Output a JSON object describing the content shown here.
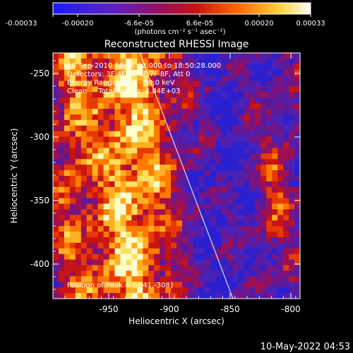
{
  "colorbar": {
    "tick_labels": [
      "-0.00033",
      "-0.00020",
      "-6.6e-05",
      "6.6e-05",
      "0.00020",
      "0.00033"
    ],
    "units_label": "(photons cm⁻² s⁻¹ asec⁻²)",
    "colors": [
      "#1a1aff",
      "#6a1fb8",
      "#9a1060",
      "#c01010",
      "#ff6a00",
      "#ffd23a",
      "#ffffff"
    ]
  },
  "title": "Reconstructed RHESSI Image",
  "info": {
    "time_range": "10-Sep-2010 18:46:12.000 to 18:50:28.000",
    "detectors": "Detectors: 3F 4F 5F 6F 7F 8F, Att 0",
    "energy_range": "Energy Range: 25.0 - 50.0 keV",
    "algorithm": "Clean     Total counts: 4.84E+03",
    "peak": "Position of Peak = [-941,-308]"
  },
  "axes": {
    "x_label": "Heliocentric X (arcsec)",
    "y_label": "Heliocentric Y (arcsec)",
    "x_ticks": [
      "-950",
      "-900",
      "-850",
      "-800"
    ],
    "y_ticks": [
      "-250",
      "-300",
      "-350",
      "-400"
    ]
  },
  "timestamp": "10-May-2022 04:53"
}
